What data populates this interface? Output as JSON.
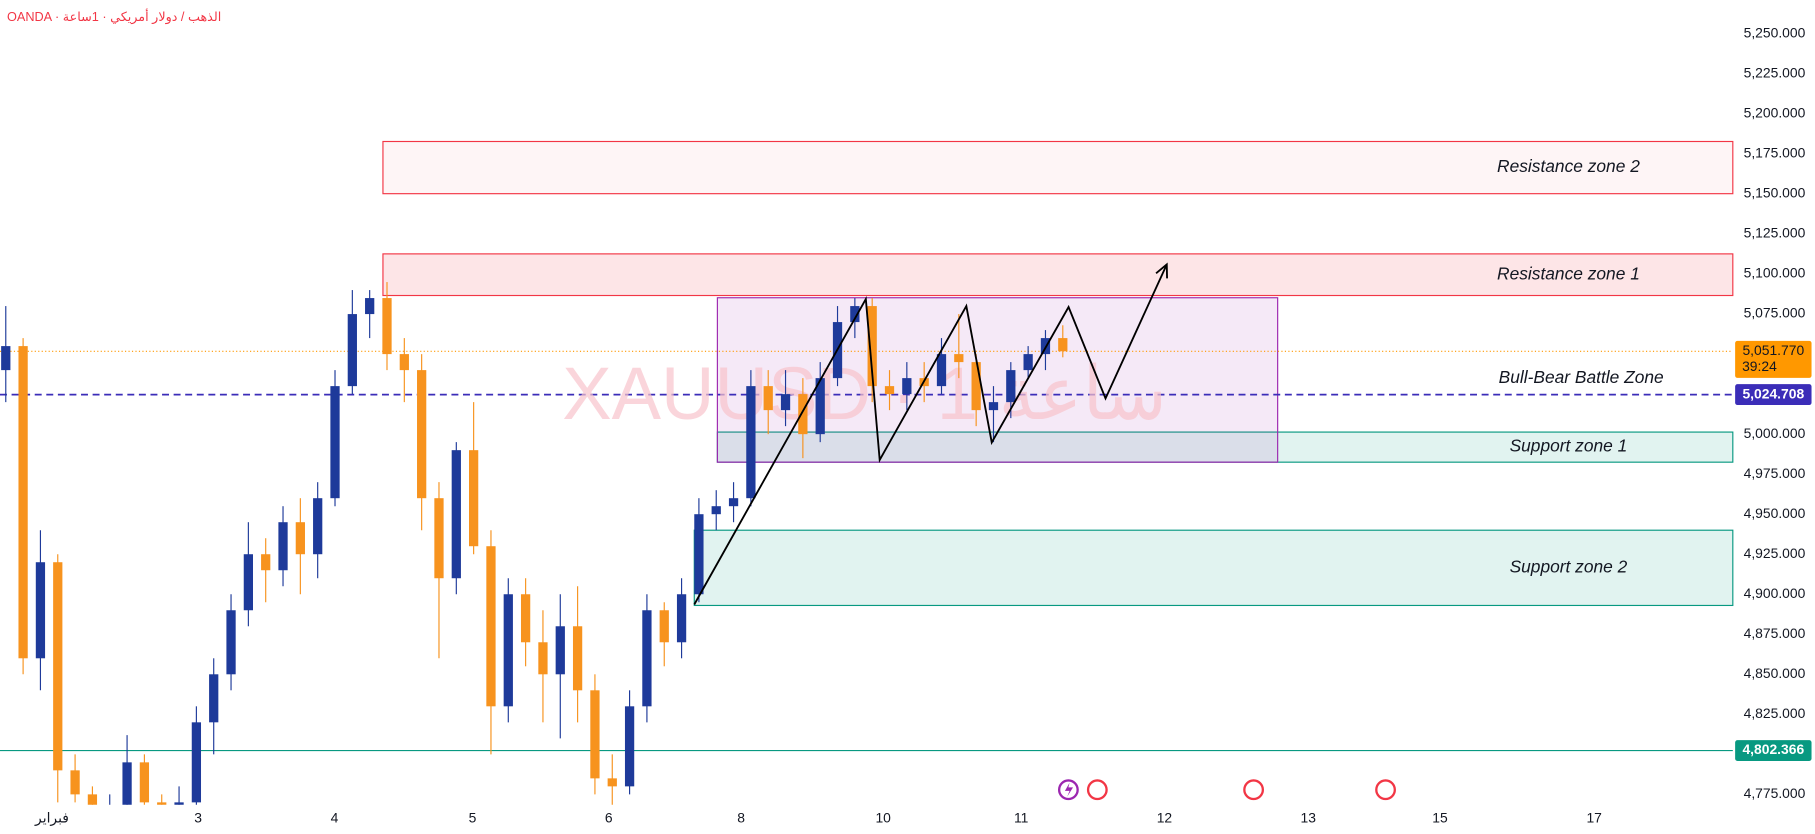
{
  "chart_data": {
    "type": "candlestick",
    "title": "OANDA · الذهب / دولار أمريكي · 1ساعة",
    "watermark": "XAUUSD · 1 ساعة",
    "xlim": [
      0,
      300
    ],
    "xticks": [
      {
        "value": 9,
        "label": "فبراير"
      },
      34.3,
      57.9,
      81.8,
      105.4,
      128.3,
      152.9,
      176.8,
      201.6,
      226.5,
      249.3,
      276
    ],
    "xtick_labels": [
      "فبراير",
      "3",
      "4",
      "5",
      "6",
      "8",
      "10",
      "11",
      "12",
      "13",
      "15",
      "17"
    ],
    "ylim": [
      4768.5,
      5271
    ],
    "yticks": [
      {
        "value": 4775,
        "label": "4,775.000"
      },
      {
        "value": 4800,
        "label": "4,800.000"
      },
      {
        "value": 4825,
        "label": "4,825.000"
      },
      {
        "value": 4850,
        "label": "4,850.000"
      },
      {
        "value": 4875,
        "label": "4,875.000"
      },
      {
        "value": 4900,
        "label": "4,900.000"
      },
      {
        "value": 4925,
        "label": "4,925.000"
      },
      {
        "value": 4950,
        "label": "4,950.000"
      },
      {
        "value": 4975,
        "label": "4,975.000"
      },
      {
        "value": 5000,
        "label": "5,000.000"
      },
      {
        "value": 5025,
        "label": "5,025.000"
      },
      {
        "value": 5050,
        "label": "5,050.000"
      },
      {
        "value": 5075,
        "label": "5,075.000"
      },
      {
        "value": 5100,
        "label": "5,100.000"
      },
      {
        "value": 5125,
        "label": "5,125.000"
      },
      {
        "value": 5150,
        "label": "5,150.000"
      },
      {
        "value": 5175,
        "label": "5,175.000"
      },
      {
        "value": 5200,
        "label": "5,200.000"
      },
      {
        "value": 5225,
        "label": "5,225.000"
      },
      {
        "value": 5250,
        "label": "5,250.000"
      }
    ],
    "up_color": "#1e3a9a",
    "down_color": "#f7931e",
    "candles": {
      "x": [
        1,
        4,
        7,
        10,
        13,
        16,
        19,
        22,
        25,
        28,
        31,
        34,
        37,
        40,
        43,
        46,
        49,
        52,
        55,
        58,
        61,
        64,
        67,
        70,
        73,
        76,
        79,
        82,
        85,
        88,
        91,
        94,
        97,
        100,
        103,
        106,
        109,
        112,
        115,
        118,
        121,
        124,
        127,
        130,
        133,
        136,
        139,
        142,
        145,
        148,
        151,
        154,
        157,
        160,
        163,
        166,
        169,
        172,
        175,
        178,
        181,
        184
      ],
      "open": [
        5040,
        5055,
        4860,
        4920,
        4790,
        4775,
        4760,
        4765,
        4795,
        4770,
        4760,
        4770,
        4820,
        4850,
        4890,
        4925,
        4915,
        4945,
        4925,
        4960,
        5030,
        5075,
        5085,
        5050,
        5040,
        4960,
        4910,
        4990,
        4930,
        4830,
        4900,
        4870,
        4850,
        4880,
        4840,
        4785,
        4780,
        4830,
        4890,
        4870,
        4900,
        4950,
        4955,
        4960,
        5030,
        5015,
        5025,
        5000,
        5035,
        5070,
        5080,
        5030,
        5025,
        5035,
        5030,
        5050,
        5045,
        5015,
        5020,
        5040,
        5050,
        5060
      ],
      "high": [
        5080,
        5060,
        4940,
        4925,
        4800,
        4780,
        4775,
        4812,
        4800,
        4775,
        4780,
        4830,
        4860,
        4900,
        4945,
        4935,
        4955,
        4960,
        4970,
        5040,
        5090,
        5090,
        5095,
        5060,
        5050,
        4970,
        4995,
        5020,
        4940,
        4910,
        4910,
        4890,
        4900,
        4905,
        4850,
        4800,
        4840,
        4900,
        4895,
        4910,
        4960,
        4965,
        4970,
        5040,
        5040,
        5040,
        5035,
        5045,
        5080,
        5085,
        5085,
        5040,
        5045,
        5045,
        5060,
        5075,
        5050,
        5030,
        5045,
        5055,
        5065,
        5068
      ],
      "low": [
        5020,
        4850,
        4840,
        4770,
        4770,
        4745,
        4740,
        4760,
        4755,
        4745,
        4750,
        4765,
        4800,
        4840,
        4880,
        4895,
        4905,
        4900,
        4910,
        4955,
        5025,
        5060,
        5040,
        5020,
        4940,
        4860,
        4900,
        4925,
        4800,
        4820,
        4855,
        4820,
        4810,
        4820,
        4775,
        4765,
        4775,
        4820,
        4855,
        4860,
        4895,
        4940,
        4945,
        4955,
        5000,
        5005,
        4985,
        4995,
        5030,
        5060,
        5020,
        5015,
        5015,
        5020,
        5025,
        5035,
        5005,
        4995,
        5010,
        5035,
        5040,
        5048
      ],
      "close": [
        5055,
        4860,
        4920,
        4790,
        4775,
        4760,
        4765,
        4795,
        4770,
        4760,
        4770,
        4820,
        4850,
        4890,
        4925,
        4915,
        4945,
        4925,
        4960,
        5030,
        5075,
        5085,
        5050,
        5040,
        4960,
        4910,
        4990,
        4930,
        4830,
        4900,
        4870,
        4850,
        4880,
        4840,
        4785,
        4780,
        4830,
        4890,
        4870,
        4900,
        4950,
        4955,
        4960,
        5030,
        5015,
        5025,
        5000,
        5035,
        5070,
        5080,
        5030,
        5025,
        5035,
        5030,
        5050,
        5045,
        5015,
        5020,
        5040,
        5050,
        5060,
        5051.77
      ]
    },
    "zones": [
      {
        "name": "Resistance zone 2",
        "top": 5182.8,
        "bottom": 5150.2,
        "x_start": 66.3,
        "x_end": 300,
        "color": "#f23645"
      },
      {
        "name": "Resistance zone 1",
        "top": 5112.6,
        "bottom": 5086.6,
        "x_start": 66.3,
        "x_end": 300,
        "color": "#f23645"
      },
      {
        "name": "Support zone 1",
        "top": 5001.3,
        "bottom": 4982.5,
        "x_start": 124.2,
        "x_end": 300,
        "color": "#089981"
      },
      {
        "name": "Support zone 2",
        "top": 4940,
        "bottom": 4893,
        "x_start": 120.2,
        "x_end": 300,
        "color": "#089981"
      }
    ],
    "range_box": {
      "top": 5085.2,
      "bottom": 4982.5,
      "x_start": 124.2,
      "x_end": 221.2,
      "color": "#9c27b0"
    },
    "levels": [
      {
        "name": "Bull-Bear Battle Zone",
        "value": 5024.708,
        "label": "5,024.708",
        "color": "#3b2db8"
      },
      {
        "value": 4802.366,
        "label": "4,802.366",
        "color": "#089981"
      }
    ],
    "last_price": {
      "value": 5051.77,
      "label": "5,051.770",
      "countdown": "39:24",
      "color": "#ff9800"
    },
    "path": {
      "x": [
        120.2,
        149.9,
        152.3,
        167.3,
        171.7,
        185,
        191.4,
        202
      ],
      "y": [
        4893.6,
        5084.4,
        4983.9,
        5080,
        4994.8,
        5079.4,
        5022.3,
        5106
      ]
    }
  }
}
